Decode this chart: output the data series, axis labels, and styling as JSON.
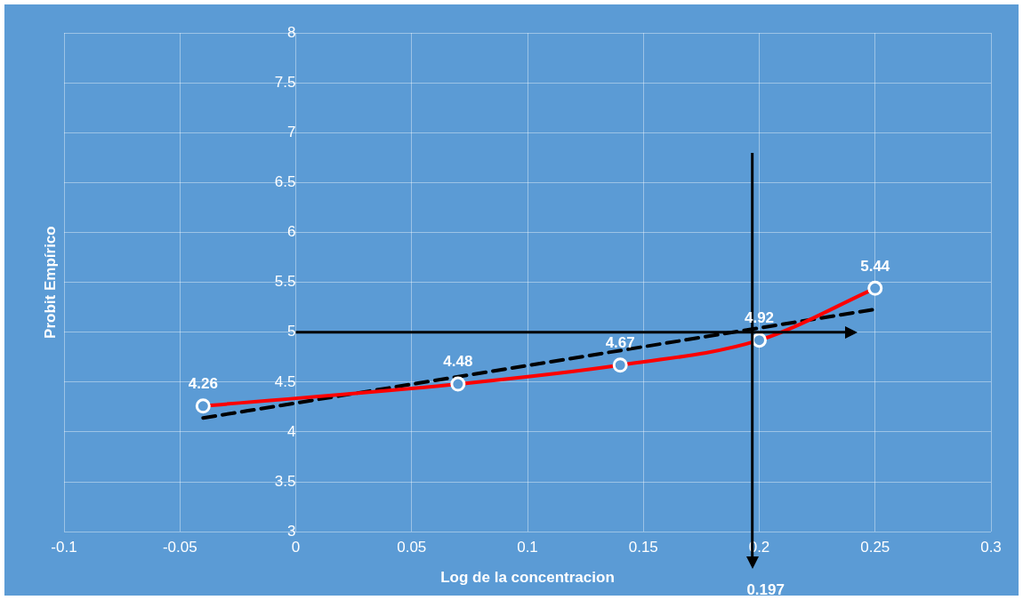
{
  "chart_data": {
    "type": "line",
    "xlabel": "Log de la concentracion",
    "ylabel": "Probit Empírico",
    "xlim": [
      -0.1,
      0.3
    ],
    "xticks": [
      -0.1,
      -0.05,
      0,
      0.05,
      0.1,
      0.15,
      0.2,
      0.25,
      0.3
    ],
    "ylim": [
      3,
      8
    ],
    "yticks": [
      3,
      3.5,
      4,
      4.5,
      5,
      5.5,
      6,
      6.5,
      7,
      7.5,
      8
    ],
    "grid": true,
    "legend": false,
    "series": [
      {
        "type": "line",
        "color": "#ff0000",
        "marker": "circle",
        "x": [
          -0.04,
          0.07,
          0.14,
          0.2,
          0.25
        ],
        "values": [
          4.26,
          4.48,
          4.67,
          4.92,
          5.44
        ],
        "value_labels": [
          "4.26",
          "4.48",
          "4.67",
          "4.92",
          "5.44"
        ]
      },
      {
        "type": "line",
        "color": "#000000",
        "marker": "none",
        "line_style": "dashed",
        "x": [
          -0.04,
          0.25
        ],
        "values": [
          4.14,
          5.23
        ]
      }
    ],
    "ref_lines": [
      {
        "axis": "y",
        "value": 5,
        "color": "#000000"
      },
      {
        "axis": "x",
        "value": 0.197,
        "label": "0.197",
        "color": "#000000"
      }
    ]
  }
}
